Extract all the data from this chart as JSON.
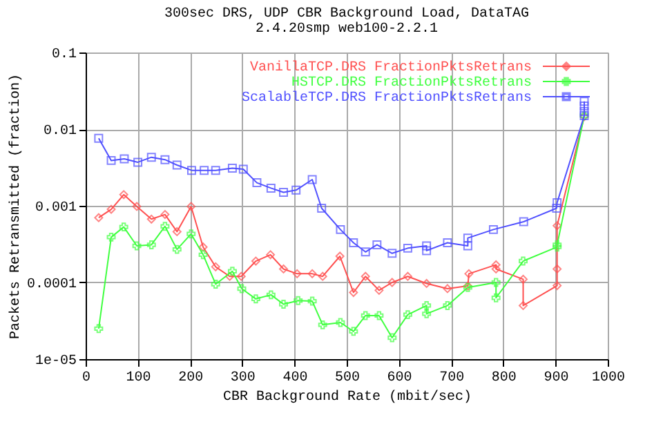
{
  "chart_data": {
    "type": "line",
    "title": "300sec DRS, UDP CBR Background Load, DataTAG",
    "subtitle": "2.4.20smp web100-2.2.1",
    "xlabel": "CBR Background Rate (mbit/sec)",
    "ylabel": "Packets Retransmitted (fraction)",
    "xlim": [
      0,
      1000
    ],
    "xticks": [
      0,
      100,
      200,
      300,
      400,
      500,
      600,
      700,
      800,
      900,
      1000
    ],
    "ylim": [
      1e-05,
      0.1
    ],
    "yticks": [
      0.1,
      0.01,
      0.001,
      0.0001,
      {
        "value": 1e-05,
        "label": "1e-05"
      }
    ],
    "log": "y",
    "grid": true,
    "legend": "top right",
    "line_style": "solid",
    "series": [
      {
        "name": "VanillaTCP.DRS FractionPktsRetrans",
        "color": "#ff5050",
        "marker": "diamond",
        "x": [
          25,
          49,
          73,
          98,
          126,
          152,
          175,
          202,
          225,
          249,
          276,
          298,
          326,
          354,
          379,
          405,
          434,
          454,
          487,
          513,
          536,
          562,
          587,
          617,
          653,
          693,
          732,
          734,
          786,
          786,
          838,
          838,
          903,
          903,
          903,
          955
        ],
        "values": [
          0.0007,
          0.0009,
          0.0014,
          0.00098,
          0.00067,
          0.00077,
          0.00046,
          0.00098,
          0.00029,
          0.00016,
          0.00012,
          0.00012,
          0.00019,
          0.00023,
          0.00015,
          0.00013,
          0.00013,
          0.00012,
          0.00022,
          7.4e-05,
          0.00012,
          7.9e-05,
          0.0001,
          0.00012,
          9.7e-05,
          8.3e-05,
          9e-05,
          0.00013,
          0.00017,
          0.00015,
          0.00011,
          5e-05,
          9.1e-05,
          0.00015,
          0.00055,
          0.0146
        ]
      },
      {
        "name": "HSTCP.DRS FractionPktsRetrans",
        "color": "#40ff40",
        "marker": "cross",
        "x": [
          25,
          49,
          73,
          98,
          126,
          152,
          175,
          202,
          225,
          249,
          281,
          299,
          326,
          355,
          379,
          407,
          434,
          454,
          488,
          513,
          536,
          562,
          587,
          617,
          653,
          653,
          693,
          732,
          786,
          786,
          838,
          903,
          903,
          955
        ],
        "values": [
          2.5e-05,
          0.00039,
          0.00053,
          0.0003,
          0.00031,
          0.00054,
          0.00027,
          0.00043,
          0.00023,
          9.5e-05,
          0.00014,
          8.3e-05,
          6.1e-05,
          6.9e-05,
          5.2e-05,
          5.8e-05,
          5.7e-05,
          2.8e-05,
          3e-05,
          2.3e-05,
          3.7e-05,
          3.7e-05,
          1.9e-05,
          3.8e-05,
          5e-05,
          3.9e-05,
          5e-05,
          8.6e-05,
          0.0001,
          6.3e-05,
          0.00019,
          0.00029,
          0.00031,
          0.015
        ]
      },
      {
        "name": "ScalableTCP.DRS FractionPktsRetrans",
        "color": "#5050ff",
        "marker": "square",
        "x": [
          25,
          49,
          74,
          100,
          126,
          152,
          175,
          203,
          227,
          249,
          281,
          302,
          328,
          355,
          379,
          403,
          434,
          452,
          488,
          513,
          536,
          558,
          587,
          617,
          653,
          653,
          693,
          732,
          732,
          781,
          839,
          902,
          903,
          955,
          955,
          955,
          955
        ],
        "values": [
          0.0076,
          0.0039,
          0.0041,
          0.0037,
          0.0043,
          0.004,
          0.0034,
          0.0029,
          0.0029,
          0.0029,
          0.0031,
          0.003,
          0.002,
          0.0017,
          0.0015,
          0.0016,
          0.0022,
          0.00093,
          0.00049,
          0.00033,
          0.00025,
          0.00031,
          0.00024,
          0.00028,
          0.0003,
          0.00026,
          0.00033,
          0.0003,
          0.00038,
          0.00049,
          0.00062,
          0.00093,
          0.0011,
          0.015,
          0.017,
          0.02,
          0.023
        ]
      }
    ]
  }
}
